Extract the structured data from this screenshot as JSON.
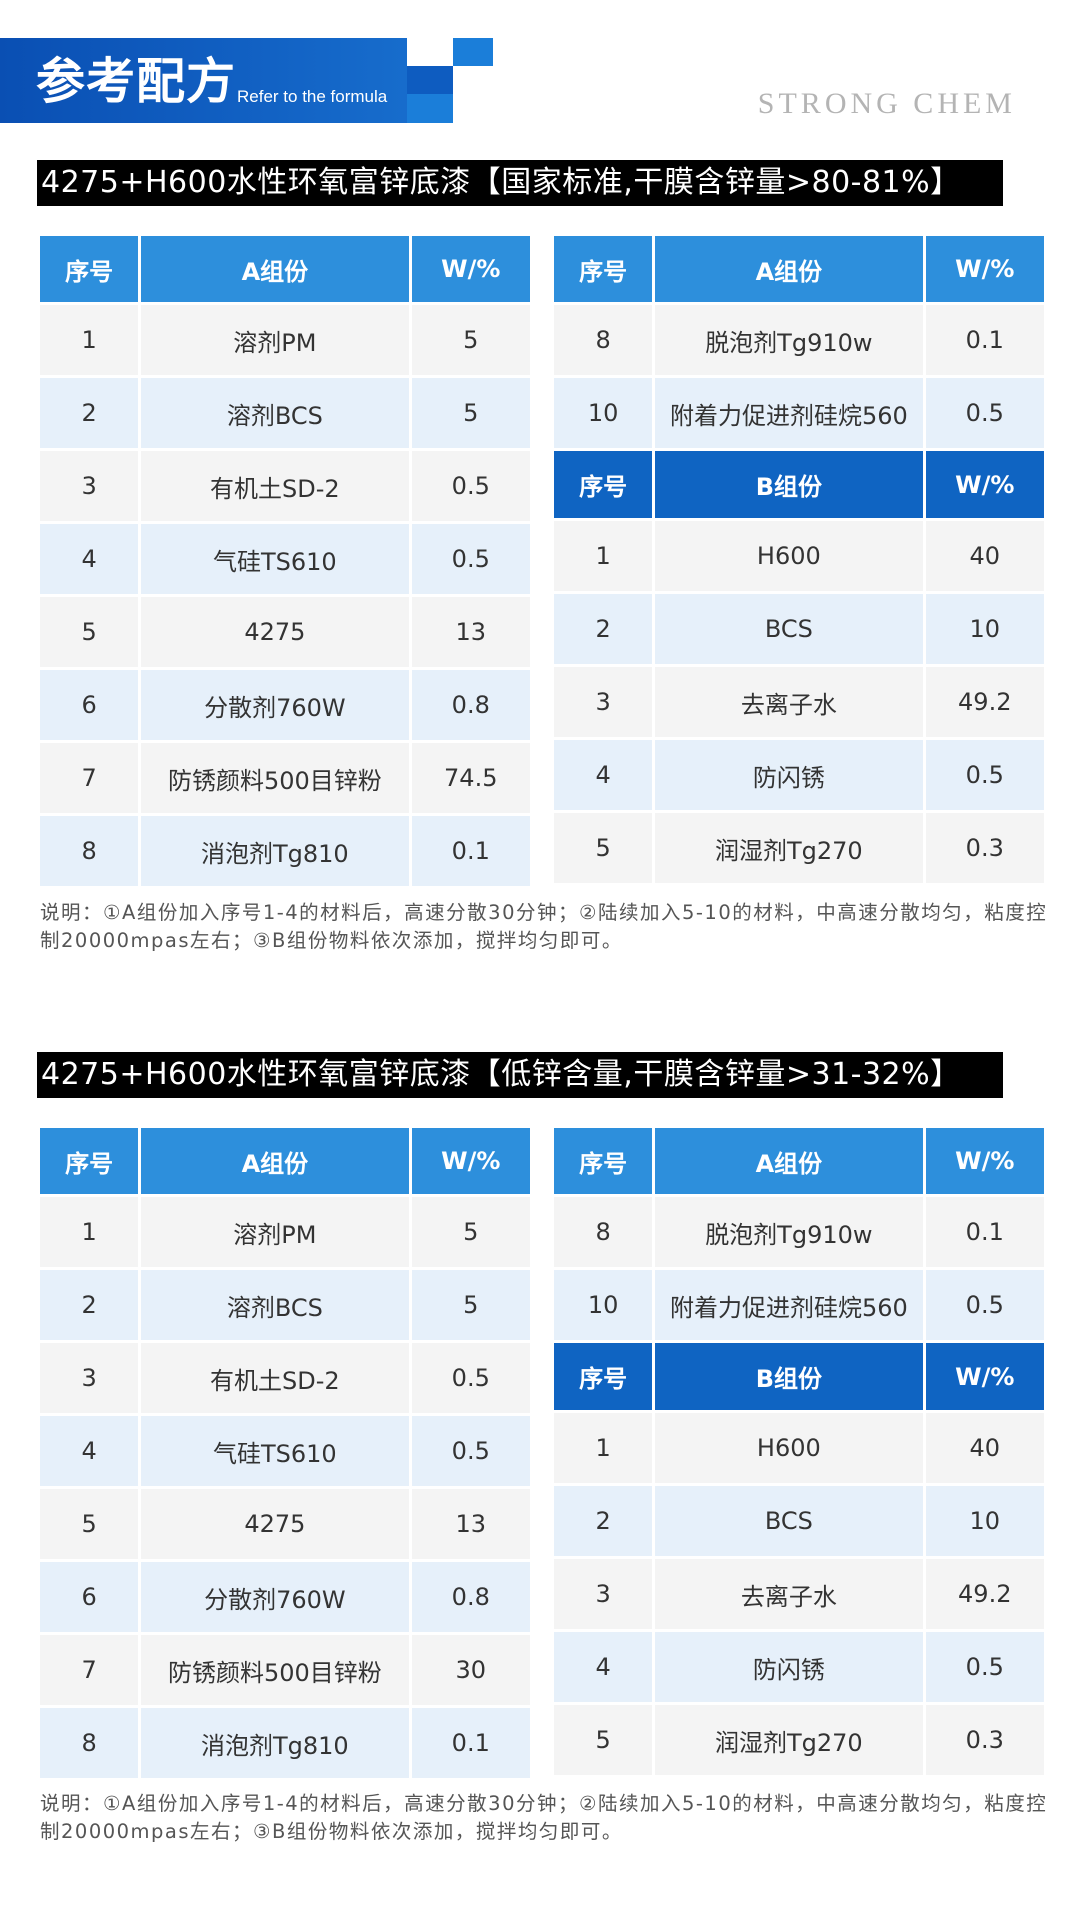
{
  "header": {
    "title": "参考配方",
    "subtitle": "Refer to the formula",
    "brand": "STRONG CHEM"
  },
  "sections": [
    {
      "title": "4275+H600水性环氧富锌底漆【国家标准,干膜含锌量>80-81%】",
      "a_header": {
        "no": "序号",
        "name": "A组份",
        "w": "W/%"
      },
      "a_rows": [
        {
          "no": "1",
          "name": "溶剂PM",
          "w": "5"
        },
        {
          "no": "2",
          "name": "溶剂BCS",
          "w": "5"
        },
        {
          "no": "3",
          "name": "有机土SD-2",
          "w": "0.5"
        },
        {
          "no": "4",
          "name": "气硅TS610",
          "w": "0.5"
        },
        {
          "no": "5",
          "name": "4275",
          "w": "13"
        },
        {
          "no": "6",
          "name": "分散剂760W",
          "w": "0.8"
        },
        {
          "no": "7",
          "name": "防锈颜料500目锌粉",
          "w": "74.5"
        },
        {
          "no": "8",
          "name": "消泡剂Tg810",
          "w": "0.1"
        }
      ],
      "a2_header": {
        "no": "序号",
        "name": "A组份",
        "w": "W/%"
      },
      "a2_rows": [
        {
          "no": "8",
          "name": "脱泡剂Tg910w",
          "w": "0.1"
        },
        {
          "no": "10",
          "name": "附着力促进剂硅烷560",
          "w": "0.5"
        }
      ],
      "b_header": {
        "no": "序号",
        "name": "B组份",
        "w": "W/%"
      },
      "b_rows": [
        {
          "no": "1",
          "name": "H600",
          "w": "40"
        },
        {
          "no": "2",
          "name": "BCS",
          "w": "10"
        },
        {
          "no": "3",
          "name": "去离子水",
          "w": "49.2"
        },
        {
          "no": "4",
          "name": "防闪锈",
          "w": "0.5"
        },
        {
          "no": "5",
          "name": "润湿剂Tg270",
          "w": "0.3"
        }
      ],
      "note": "说明：①A组份加入序号1-4的材料后，高速分散30分钟；②陆续加入5-10的材料，中高速分散均匀，粘度控制20000mpas左右；③B组份物料依次添加，搅拌均匀即可。"
    },
    {
      "title": "4275+H600水性环氧富锌底漆【低锌含量,干膜含锌量>31-32%】",
      "a_header": {
        "no": "序号",
        "name": "A组份",
        "w": "W/%"
      },
      "a_rows": [
        {
          "no": "1",
          "name": "溶剂PM",
          "w": "5"
        },
        {
          "no": "2",
          "name": "溶剂BCS",
          "w": "5"
        },
        {
          "no": "3",
          "name": "有机土SD-2",
          "w": "0.5"
        },
        {
          "no": "4",
          "name": "气硅TS610",
          "w": "0.5"
        },
        {
          "no": "5",
          "name": "4275",
          "w": "13"
        },
        {
          "no": "6",
          "name": "分散剂760W",
          "w": "0.8"
        },
        {
          "no": "7",
          "name": "防锈颜料500目锌粉",
          "w": "30"
        },
        {
          "no": "8",
          "name": "消泡剂Tg810",
          "w": "0.1"
        }
      ],
      "a2_header": {
        "no": "序号",
        "name": "A组份",
        "w": "W/%"
      },
      "a2_rows": [
        {
          "no": "8",
          "name": "脱泡剂Tg910w",
          "w": "0.1"
        },
        {
          "no": "10",
          "name": "附着力促进剂硅烷560",
          "w": "0.5"
        }
      ],
      "b_header": {
        "no": "序号",
        "name": "B组份",
        "w": "W/%"
      },
      "b_rows": [
        {
          "no": "1",
          "name": "H600",
          "w": "40"
        },
        {
          "no": "2",
          "name": "BCS",
          "w": "10"
        },
        {
          "no": "3",
          "name": "去离子水",
          "w": "49.2"
        },
        {
          "no": "4",
          "name": "防闪锈",
          "w": "0.5"
        },
        {
          "no": "5",
          "name": "润湿剂Tg270",
          "w": "0.3"
        }
      ],
      "note": "说明：①A组份加入序号1-4的材料后，高速分散30分钟；②陆续加入5-10的材料，中高速分散均匀，粘度控制20000mpas左右；③B组份物料依次添加，搅拌均匀即可。"
    }
  ]
}
